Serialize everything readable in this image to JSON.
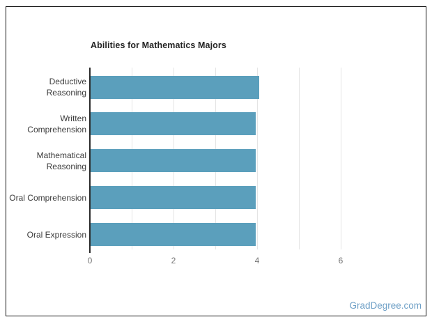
{
  "page": {
    "background": "#ffffff",
    "frame_border_color": "#101010"
  },
  "watermark": {
    "text": "GradDegree.com",
    "color": "#6d9fc6"
  },
  "chart_data": {
    "type": "bar",
    "orientation": "horizontal",
    "title": "Abilities for Mathematics Majors",
    "xlabel": "",
    "ylabel": "",
    "categories": [
      "Deductive Reasoning",
      "Written Comprehension",
      "Mathematical Reasoning",
      "Oral Comprehension",
      "Oral Expression"
    ],
    "category_lines": [
      [
        "Deductive",
        "Reasoning"
      ],
      [
        "Written",
        "Comprehension"
      ],
      [
        "Mathematical",
        "Reasoning"
      ],
      [
        "Oral Comprehension"
      ],
      [
        "Oral Expression"
      ]
    ],
    "values": [
      4.05,
      3.97,
      3.97,
      3.97,
      3.97
    ],
    "xlim": [
      0,
      7
    ],
    "x_ticks": [
      0,
      2,
      4,
      6
    ],
    "gridlines_at": [
      1,
      2,
      3,
      4,
      5,
      6
    ],
    "legend": "none",
    "grid": true,
    "colors": {
      "bar": "#5b9fbc",
      "gridline": "#e4e4e4",
      "axis_line": "#2a2a2a",
      "tick_label": "#757575",
      "category_label": "#3b3b3b",
      "title": "#252525"
    }
  }
}
